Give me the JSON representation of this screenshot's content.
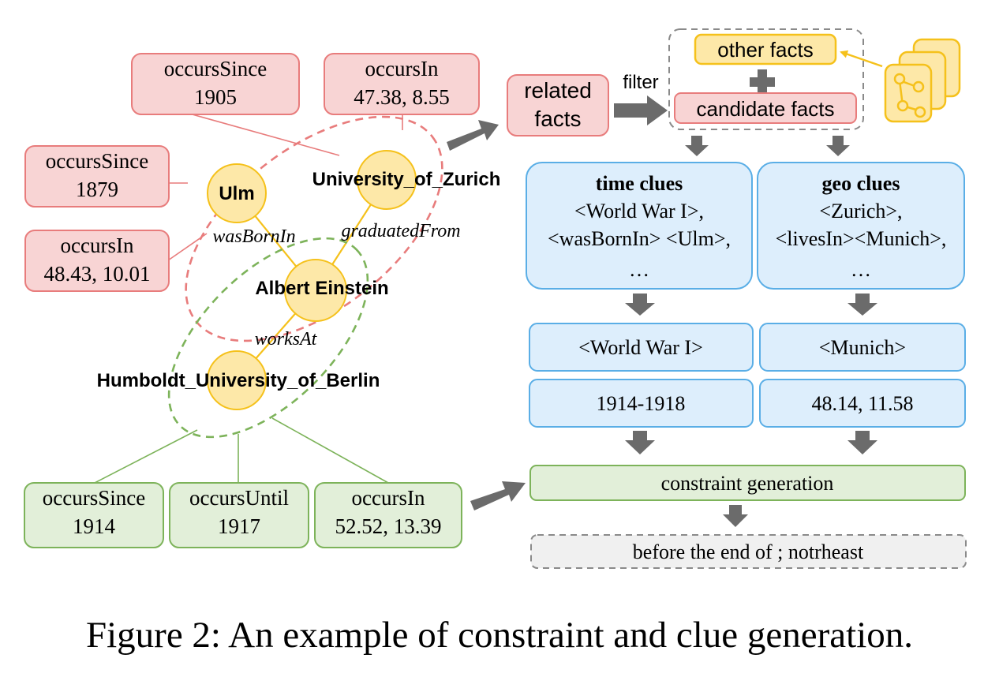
{
  "red_facts": [
    {
      "id": "since1905",
      "line1": "occursSince",
      "line2": "1905"
    },
    {
      "id": "in4738",
      "line1": "occursIn",
      "line2": "47.38, 8.55"
    },
    {
      "id": "since1879",
      "line1": "occursSince",
      "line2": "1879"
    },
    {
      "id": "in4843",
      "line1": "occursIn",
      "line2": "48.43, 10.01"
    }
  ],
  "green_facts": [
    {
      "id": "since1914",
      "line1": "occursSince",
      "line2": "1914"
    },
    {
      "id": "until1917",
      "line1": "occursUntil",
      "line2": "1917"
    },
    {
      "id": "in5252",
      "line1": "occursIn",
      "line2": "52.52, 13.39"
    }
  ],
  "entities": {
    "ulm": "Ulm",
    "zurich": "University_of_Zurich",
    "einstein": "Albert Einstein",
    "humboldt": "Humboldt_University_of_Berlin"
  },
  "relations": {
    "born": "wasBornIn",
    "graduated": "graduatedFrom",
    "works": "worksAt"
  },
  "pipeline": {
    "related_line1": "related",
    "related_line2": "facts",
    "filter": "filter",
    "other_facts": "other facts",
    "candidate_facts": "candidate facts",
    "time_title": "time clues",
    "time_line1": "<World War I>,",
    "time_line2": "<wasBornIn> <Ulm>,",
    "time_line3": "…",
    "geo_title": "geo clues",
    "geo_line1": "<Zurich>,",
    "geo_line2": "<livesIn><Munich>,",
    "geo_line3": "…",
    "time_entity": "<World War I>",
    "geo_entity": "<Munich>",
    "time_value": "1914-1918",
    "geo_value": "48.14, 11.58",
    "constraint": "constraint generation",
    "output": "before the end of ; notrheast"
  },
  "colors": {
    "red_fill": "#f8d4d4",
    "red_stroke": "#e87c7c",
    "green_fill": "#e2efd9",
    "green_stroke": "#7db35a",
    "yellow_fill": "#fde8a8",
    "yellow_stroke": "#f5c11b",
    "blue_fill": "#ddeefc",
    "blue_stroke": "#5aaee6",
    "arrow": "#6b6b6b"
  },
  "caption": "Figure 2: An example of constraint and clue generation."
}
